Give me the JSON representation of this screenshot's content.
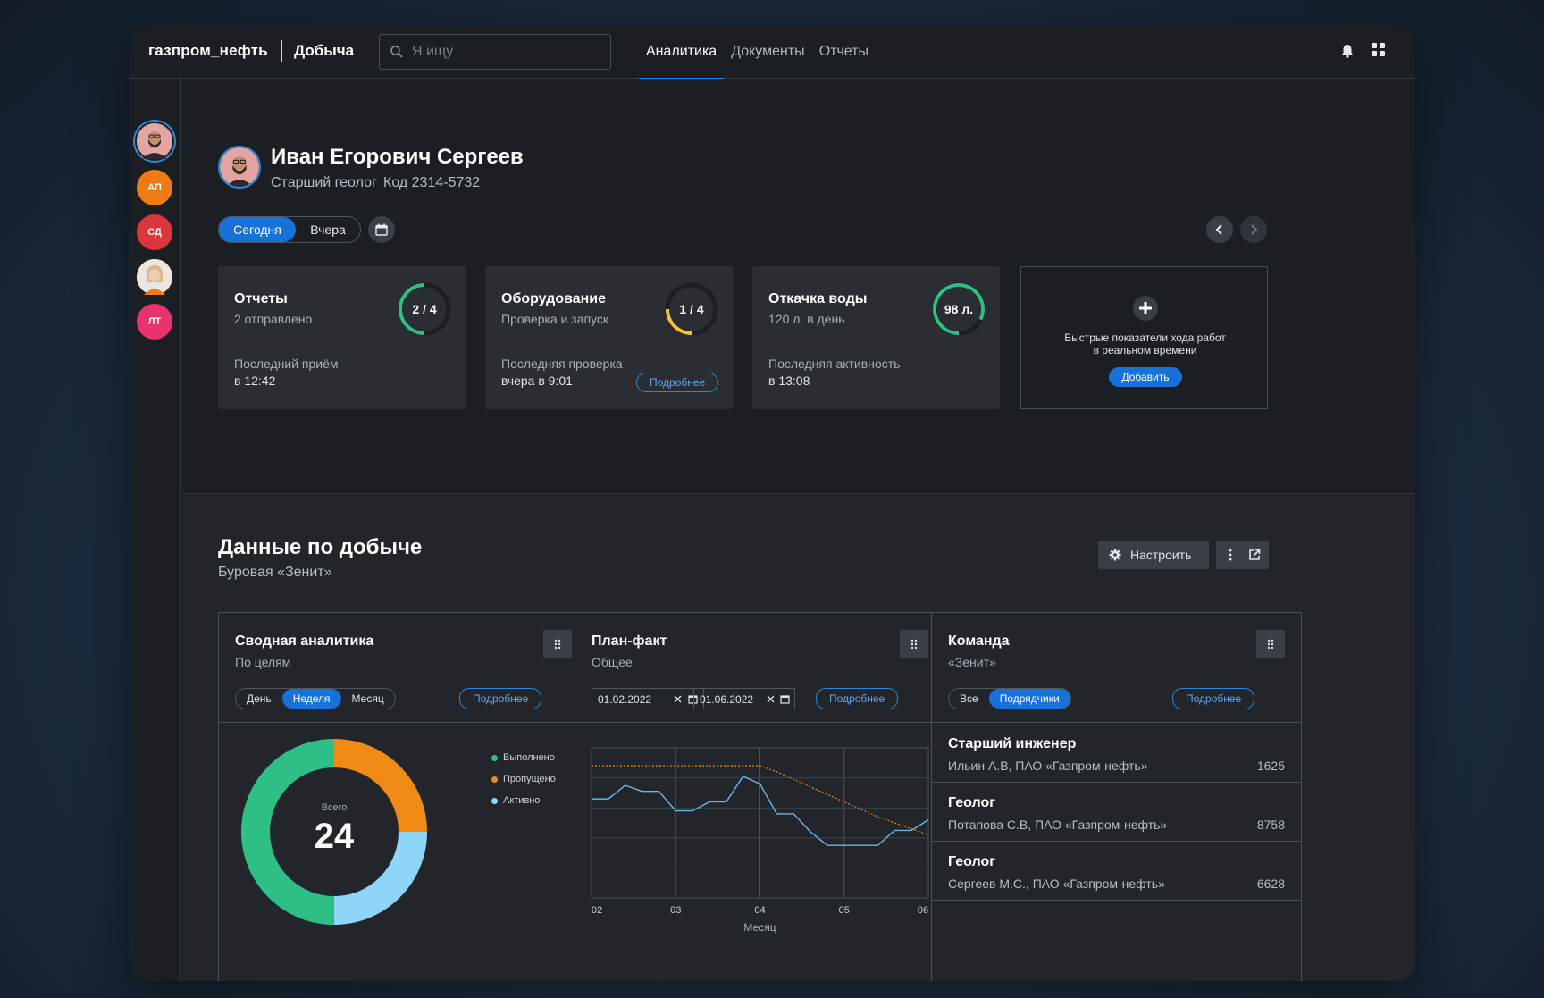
{
  "brand": {
    "name": "газпром_нефть",
    "section": "Добыча"
  },
  "search": {
    "placeholder": "Я ищу"
  },
  "nav": {
    "items": [
      "Аналитика",
      "Документы",
      "Отчеты"
    ],
    "active": "Аналитика"
  },
  "sidebar": {
    "avatars": [
      {
        "initials": "",
        "color": "#3a3f46",
        "selected": true
      },
      {
        "initials": "АП",
        "color": "#f07a14"
      },
      {
        "initials": "СД",
        "color": "#d9373a"
      },
      {
        "initials": "",
        "color": "#e9e2d6"
      },
      {
        "initials": "ЛТ",
        "color": "#e8336f"
      }
    ]
  },
  "profile": {
    "name": "Иван Егорович Сергеев",
    "role": "Старший геолог",
    "code": "Код 2314-5732"
  },
  "day_toggle": {
    "today": "Сегодня",
    "yesterday": "Вчера",
    "active": "Сегодня"
  },
  "kpis": [
    {
      "title": "Отчеты",
      "sub": "2 отправлено",
      "ring": "2 / 4",
      "fraction": 0.5,
      "ring_color": "#2ebf86",
      "foot1": "Последний приём",
      "foot2": "в 12:42",
      "button": ""
    },
    {
      "title": "Оборудование",
      "sub": "Проверка и запуск",
      "ring": "1 / 4",
      "fraction": 0.25,
      "ring_color": "#f2c233",
      "foot1": "Последняя проверка",
      "foot2": "вчера в 9:01",
      "button": "Подробнее"
    },
    {
      "title": "Откачка воды",
      "sub": "120 л. в день",
      "ring": "98 л.",
      "fraction": 0.82,
      "ring_color": "#2ebf86",
      "foot1": "Последняя активность",
      "foot2": "в 13:08",
      "button": ""
    }
  ],
  "add_card": {
    "text1": "Быстрые показатели хода работ",
    "text2": "в реальном времени",
    "button": "Добавить"
  },
  "section": {
    "title": "Данные по добыче",
    "subtitle": "Буровая «Зенит»",
    "setup": "Настроить"
  },
  "summary_panel": {
    "title": "Сводная аналитика",
    "subtitle": "По целям",
    "segments": [
      "День",
      "Неделя",
      "Месяц"
    ],
    "active": "Неделя",
    "more": "Подробнее",
    "center_label": "Всего",
    "center_value": "24"
  },
  "plan_panel": {
    "title": "План-факт",
    "subtitle": "Общее",
    "date_from": "01.02.2022",
    "date_to": "01.06.2022",
    "more": "Подробнее"
  },
  "team_panel": {
    "title": "Команда",
    "subtitle": "«Зенит»",
    "segments": [
      "Все",
      "Подрядчики"
    ],
    "active": "Подрядчики",
    "more": "Подробнее",
    "members": [
      {
        "role": "Старший инженер",
        "name": "Ильин А.В, ПАО «Газпром-нефть»",
        "num": "1625"
      },
      {
        "role": "Геолог",
        "name": "Потапова С.В, ПАО «Газпром-нефть»",
        "num": "8758"
      },
      {
        "role": "Геолог",
        "name": "Сергеев М.С., ПАО «Газпром-нефть»",
        "num": "6628"
      }
    ]
  },
  "chart_data": [
    {
      "type": "pie",
      "categories": [
        "Выполнено",
        "Пропущено",
        "Активно"
      ],
      "values": [
        12,
        6,
        6
      ],
      "colors": [
        "#2ebf86",
        "#ef8a14",
        "#8ed6f8"
      ],
      "total_label": "Всего",
      "total": 24,
      "legend": "top-right"
    },
    {
      "type": "line",
      "x_ticks": [
        "02",
        "03",
        "04",
        "05",
        "06"
      ],
      "xlabel": "Месяц",
      "ylim": [
        0,
        100
      ],
      "x": [
        2.0,
        2.2,
        2.4,
        2.6,
        2.8,
        3.0,
        3.2,
        3.4,
        3.6,
        3.8,
        4.0,
        4.2,
        4.4,
        4.6,
        4.8,
        5.0,
        5.2,
        5.4,
        5.6,
        5.8,
        6.0
      ],
      "series": [
        {
          "values": [
            66,
            66,
            75,
            71,
            71,
            58,
            58,
            64,
            64,
            81,
            76,
            56,
            56,
            44,
            35,
            35,
            35,
            35,
            45,
            45,
            52
          ],
          "color": "#6cb7e6",
          "style": "solid"
        },
        {
          "values": [
            88,
            88,
            88,
            88,
            88,
            88,
            88,
            88,
            88,
            88,
            88,
            84,
            79,
            74,
            69,
            64,
            59,
            54,
            50,
            46,
            42
          ],
          "color": "#e08a2a",
          "style": "dotted"
        }
      ],
      "grid": true
    }
  ]
}
